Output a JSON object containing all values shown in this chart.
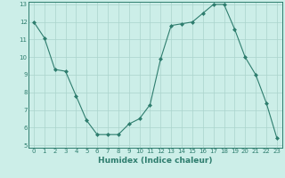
{
  "x": [
    0,
    1,
    2,
    3,
    4,
    5,
    6,
    7,
    8,
    9,
    10,
    11,
    12,
    13,
    14,
    15,
    16,
    17,
    18,
    19,
    20,
    21,
    22,
    23
  ],
  "y": [
    12.0,
    11.1,
    9.3,
    9.2,
    7.8,
    6.4,
    5.6,
    5.6,
    5.6,
    6.2,
    6.5,
    7.3,
    9.9,
    11.8,
    11.9,
    12.0,
    12.5,
    13.0,
    13.0,
    11.6,
    10.0,
    9.0,
    7.4,
    5.4
  ],
  "line_color": "#2e7d6e",
  "marker": "D",
  "marker_size": 2,
  "bg_color": "#cceee8",
  "grid_color": "#aad4cc",
  "xlabel": "Humidex (Indice chaleur)",
  "ylim": [
    5,
    13
  ],
  "xlim": [
    -0.5,
    23.5
  ],
  "yticks": [
    5,
    6,
    7,
    8,
    9,
    10,
    11,
    12,
    13
  ],
  "xticks": [
    0,
    1,
    2,
    3,
    4,
    5,
    6,
    7,
    8,
    9,
    10,
    11,
    12,
    13,
    14,
    15,
    16,
    17,
    18,
    19,
    20,
    21,
    22,
    23
  ],
  "tick_label_size": 5,
  "xlabel_size": 6.5
}
